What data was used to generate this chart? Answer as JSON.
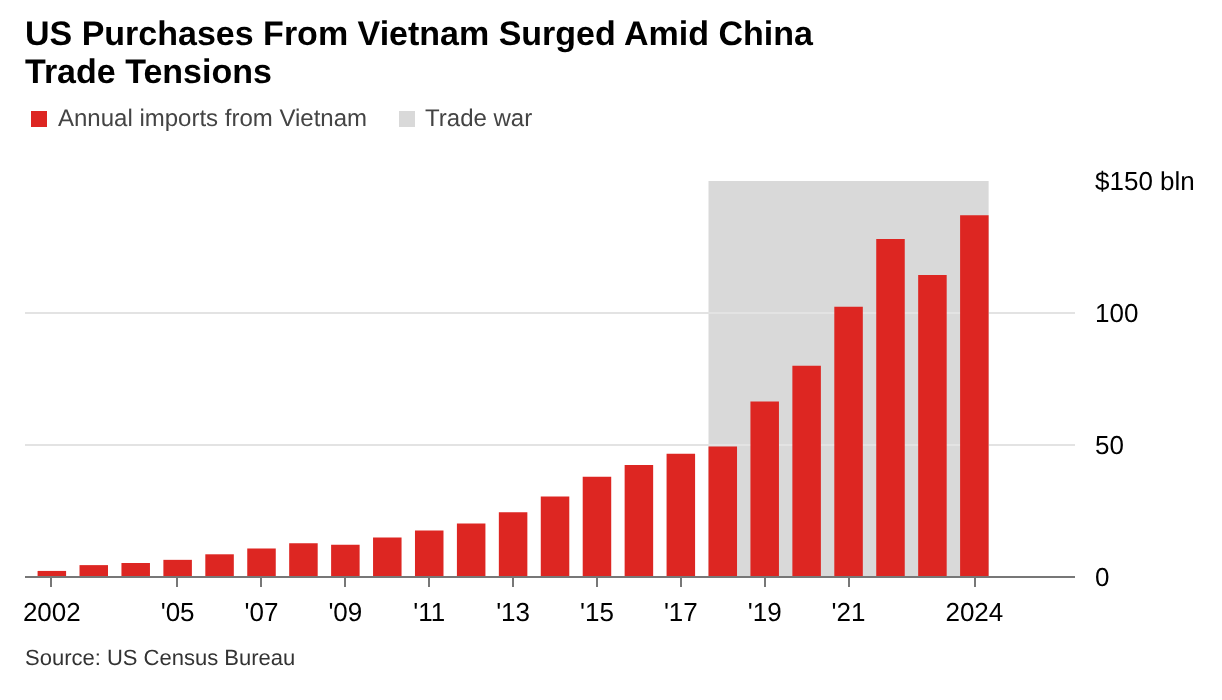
{
  "chart_data": {
    "type": "bar",
    "title": "US Purchases From Vietnam Surged Amid China Trade Tensions",
    "x": [
      2002,
      2003,
      2004,
      2005,
      2006,
      2007,
      2008,
      2009,
      2010,
      2011,
      2012,
      2013,
      2014,
      2015,
      2016,
      2017,
      2018,
      2019,
      2020,
      2021,
      2022,
      2023,
      2024
    ],
    "series": [
      {
        "name": "Annual imports from Vietnam",
        "color": "#dd2622",
        "values": [
          2.3,
          4.5,
          5.3,
          6.5,
          8.6,
          10.8,
          12.8,
          12.2,
          15,
          17.6,
          20.3,
          24.5,
          30.5,
          38,
          42.4,
          46.7,
          49.4,
          66.5,
          80,
          102.4,
          128,
          114.4,
          137
        ]
      }
    ],
    "bands": [
      {
        "axis": "x",
        "from": 2017.66,
        "to": 2024.34,
        "label": "Trade war",
        "color": "#d9d9d9"
      }
    ],
    "xlim": [
      2001.36,
      2026.4
    ],
    "ylim": [
      0,
      150
    ],
    "xticks": [
      2002,
      {
        "value": 2005,
        "label": "'05"
      },
      {
        "value": 2007,
        "label": "'07"
      },
      {
        "value": 2009,
        "label": "'09"
      },
      {
        "value": 2011,
        "label": "'11"
      },
      {
        "value": 2013,
        "label": "'13"
      },
      {
        "value": 2015,
        "label": "'15"
      },
      {
        "value": 2017,
        "label": "'17"
      },
      {
        "value": 2019,
        "label": "'19"
      },
      {
        "value": 2021,
        "label": "'21"
      },
      2024
    ],
    "yticks": [
      0,
      50,
      100,
      {
        "value": 150,
        "label": "$150 bln"
      }
    ],
    "grid": "y",
    "legend": "top left",
    "annotations": [
      "Source: US Census Bureau"
    ]
  }
}
